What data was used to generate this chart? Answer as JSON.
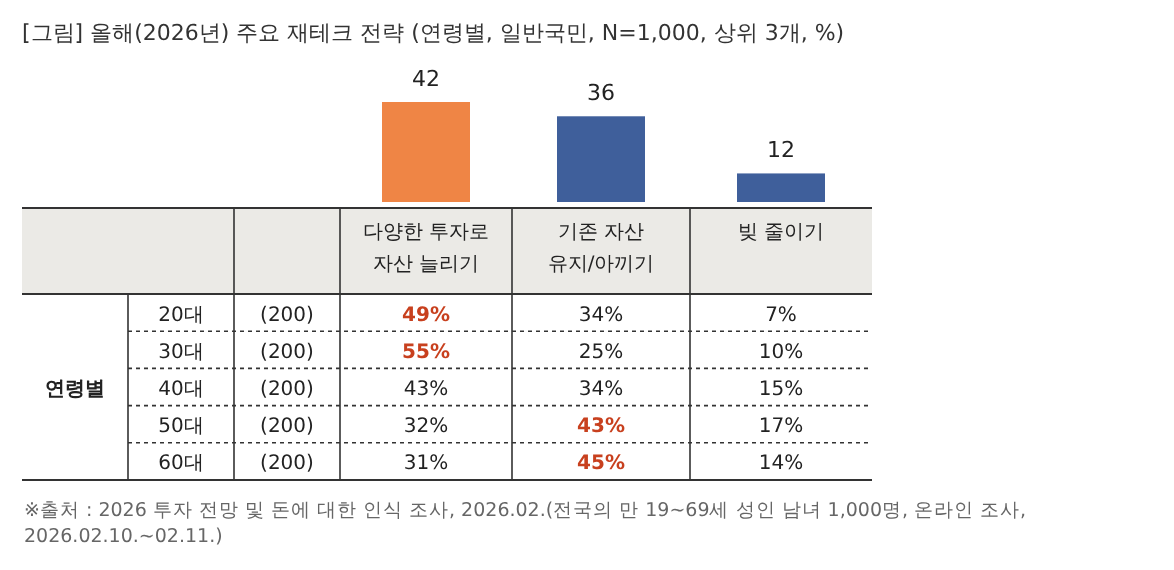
{
  "chart_data": [
    {
      "type": "bar",
      "title": "[그림] 올해(2026년) 주요 재테크 전략 (연령별, 일반국민, N=1,000, 상위 3개, %)",
      "categories": [
        "다양한 투자로\n자산 늘리기",
        "기존 자산\n유지/아끼기",
        "빚 줄이기"
      ],
      "values": [
        42,
        36,
        12
      ],
      "colors": [
        "#ef8545",
        "#3f5f9b",
        "#3f5f9b"
      ],
      "data_labels": true
    },
    {
      "type": "heatmap",
      "ylabel": "연령별",
      "categories": [
        null,
        null,
        null
      ],
      "y_categories": [
        "20대",
        "30대",
        "40대",
        "50대",
        "60대"
      ],
      "y2_categories": [
        "(200)",
        "(200)",
        "(200)",
        "(200)",
        "(200)"
      ],
      "cells": [
        [
          49,
          34,
          7
        ],
        [
          55,
          25,
          10
        ],
        [
          43,
          34,
          15
        ],
        [
          32,
          43,
          17
        ],
        [
          31,
          45,
          14
        ]
      ],
      "cell_labels": [
        [
          "49%",
          "34%",
          "7%"
        ],
        [
          "55%",
          "25%",
          "10%"
        ],
        [
          "43%",
          "34%",
          "15%"
        ],
        [
          "32%",
          "43%",
          "17%"
        ],
        [
          "31%",
          "45%",
          "14%"
        ]
      ],
      "colors": [
        [
          "#c8401e",
          "#222222",
          "#222222"
        ],
        [
          "#c8401e",
          "#222222",
          "#222222"
        ],
        [
          "#222222",
          "#222222",
          "#222222"
        ],
        [
          "#222222",
          "#c8401e",
          "#222222"
        ],
        [
          "#222222",
          "#c8401e",
          "#222222"
        ]
      ],
      "annotations": [
        "※출처 : 2026 투자 전망 및 돈에 대한 인식 조사, 2026.02.(전국의 만 19~69세 성인 남녀 1,000명, 온라인 조사, 2026.02.10.~02.11.)"
      ]
    }
  ]
}
